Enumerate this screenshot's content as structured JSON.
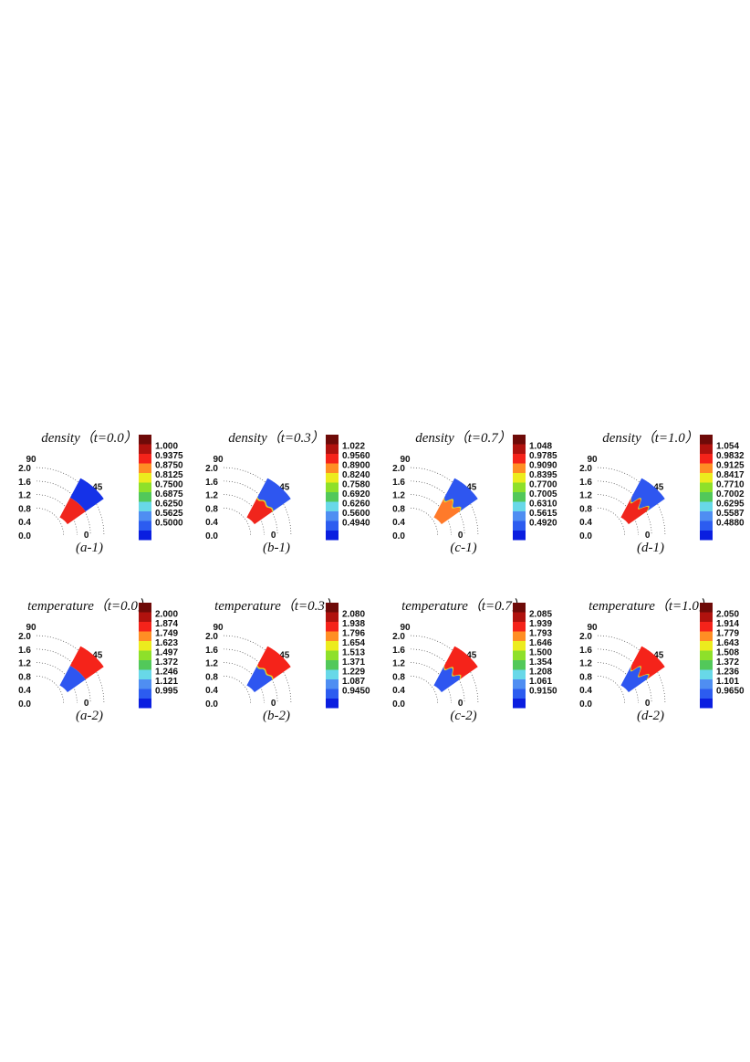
{
  "chart_data": {
    "type": "heatmap",
    "description_axes": {
      "radial_ticks": [
        "0.0",
        "0.4",
        "0.8",
        "1.2",
        "1.6",
        "2.0"
      ],
      "angle_ticks": [
        "0",
        "45",
        "90"
      ]
    },
    "palette": [
      "#0a1ee0",
      "#2c5cf0",
      "#4f8ef2",
      "#68d8e8",
      "#52c85a",
      "#8ee02a",
      "#ecec1e",
      "#ff8e24",
      "#f5231a",
      "#b0120e",
      "#6e0a08"
    ],
    "panels": [
      {
        "id": "a-1",
        "variable": "density",
        "time_label": "（t=0.0）",
        "caption": "(a-1)",
        "inner_color": "#f0251c",
        "outer_color": "#1532e8",
        "perturbation": 0,
        "inner_r": [
          0.6,
          1.2
        ],
        "outer_r": [
          1.2,
          1.8
        ],
        "levels": [
          "1.000",
          "0.9375",
          "0.8750",
          "0.8125",
          "0.7500",
          "0.6875",
          "0.6250",
          "0.5625",
          "0.5000"
        ]
      },
      {
        "id": "b-1",
        "variable": "density",
        "time_label": "（t=0.3）",
        "caption": "(b-1)",
        "inner_color": "#f0251c",
        "outer_color": "#2e56f0",
        "perturbation": 1,
        "inner_r": [
          0.6,
          1.2
        ],
        "outer_r": [
          1.2,
          1.8
        ],
        "levels": [
          "1.022",
          "0.9560",
          "0.8900",
          "0.8240",
          "0.7580",
          "0.6920",
          "0.6260",
          "0.5600",
          "0.4940"
        ]
      },
      {
        "id": "c-1",
        "variable": "density",
        "time_label": "（t=0.7）",
        "caption": "(c-1)",
        "inner_color": "#ff7a2a",
        "outer_color": "#2e56f0",
        "perturbation": 2,
        "inner_r": [
          0.6,
          1.2
        ],
        "outer_r": [
          1.2,
          1.8
        ],
        "levels": [
          "1.048",
          "0.9785",
          "0.9090",
          "0.8395",
          "0.7700",
          "0.7005",
          "0.6310",
          "0.5615",
          "0.4920"
        ]
      },
      {
        "id": "d-1",
        "variable": "density",
        "time_label": "（t=1.0）",
        "caption": "(d-1)",
        "inner_color": "#f0251c",
        "outer_color": "#2e56f0",
        "perturbation": 3,
        "inner_r": [
          0.6,
          1.2
        ],
        "outer_r": [
          1.2,
          1.8
        ],
        "levels": [
          "1.054",
          "0.9832",
          "0.9125",
          "0.8417",
          "0.7710",
          "0.7002",
          "0.6295",
          "0.5587",
          "0.4880"
        ]
      },
      {
        "id": "a-2",
        "variable": "temperature",
        "time_label": "（t=0.0）",
        "caption": "(a-2)",
        "inner_color": "#2e56f0",
        "outer_color": "#f5231a",
        "perturbation": 0,
        "inner_r": [
          0.6,
          1.2
        ],
        "outer_r": [
          1.2,
          1.8
        ],
        "levels": [
          "2.000",
          "1.874",
          "1.749",
          "1.623",
          "1.497",
          "1.372",
          "1.246",
          "1.121",
          "0.995"
        ]
      },
      {
        "id": "b-2",
        "variable": "temperature",
        "time_label": "（t=0.3）",
        "caption": "(b-2)",
        "inner_color": "#2e56f0",
        "outer_color": "#f5231a",
        "perturbation": 1,
        "inner_r": [
          0.6,
          1.2
        ],
        "outer_r": [
          1.2,
          1.8
        ],
        "levels": [
          "2.080",
          "1.938",
          "1.796",
          "1.654",
          "1.513",
          "1.371",
          "1.229",
          "1.087",
          "0.9450"
        ]
      },
      {
        "id": "c-2",
        "variable": "temperature",
        "time_label": "（t=0.7）",
        "caption": "(c-2)",
        "inner_color": "#2e56f0",
        "outer_color": "#f5231a",
        "perturbation": 2,
        "inner_r": [
          0.6,
          1.2
        ],
        "outer_r": [
          1.2,
          1.8
        ],
        "levels": [
          "2.085",
          "1.939",
          "1.793",
          "1.646",
          "1.500",
          "1.354",
          "1.208",
          "1.061",
          "0.9150"
        ]
      },
      {
        "id": "d-2",
        "variable": "temperature",
        "time_label": "（t=1.0）",
        "caption": "(d-2)",
        "inner_color": "#2e56f0",
        "outer_color": "#f5231a",
        "perturbation": 3,
        "inner_r": [
          0.6,
          1.2
        ],
        "outer_r": [
          1.2,
          1.8
        ],
        "levels": [
          "2.050",
          "1.914",
          "1.779",
          "1.643",
          "1.508",
          "1.372",
          "1.236",
          "1.101",
          "0.9650"
        ]
      }
    ]
  }
}
